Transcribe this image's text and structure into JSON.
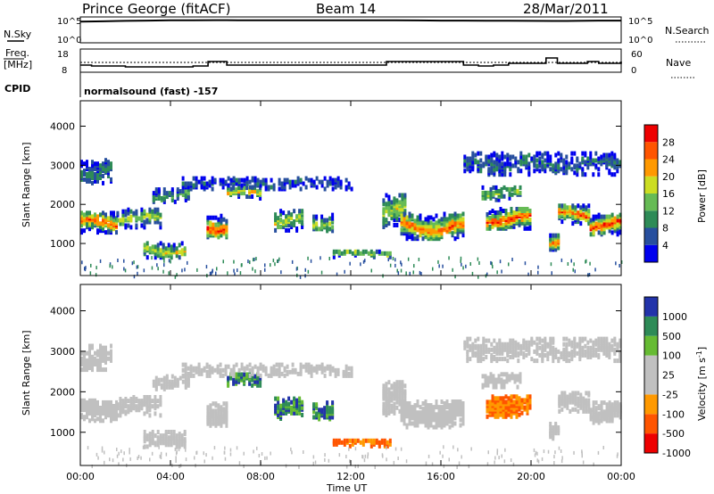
{
  "header": {
    "station": "Prince George (fitACF)",
    "beam": "Beam 14",
    "date": "28/Mar/2011"
  },
  "params": {
    "nsky_label": "N.Sky",
    "nsearch_label": "N.Search",
    "freq_label_1": "Freq.",
    "freq_label_2": "[MHz]",
    "nave_label": "Nave",
    "cpid_label": "CPID",
    "cpid_text": "normalsound (fast) -157",
    "nsky_ticks": [
      "10^5",
      "10^0"
    ],
    "freq_ticks": [
      "18",
      "8"
    ],
    "nave_ticks": [
      "60",
      "0"
    ]
  },
  "colors": {
    "power": [
      "#0000ee",
      "#274f9e",
      "#2e8b57",
      "#66bb55",
      "#ccdd22",
      "#ff9900",
      "#ff5500",
      "#ee0000"
    ],
    "velocity": [
      "#2233aa",
      "#2e8b57",
      "#66bb33",
      "#c0c0c0",
      "#c0c0c0",
      "#ff9900",
      "#ff5500",
      "#ee0000"
    ]
  },
  "chart_data": [
    {
      "type": "line",
      "title": "N.Sky / N.Search",
      "x": [
        "00:00",
        "01:00",
        "02:00",
        "03:00",
        "04:00",
        "05:00",
        "06:00",
        "07:00",
        "08:00",
        "09:00",
        "10:00",
        "11:00",
        "12:00",
        "13:00",
        "14:00",
        "15:00",
        "16:00",
        "17:00",
        "18:00",
        "19:00",
        "20:00",
        "21:00",
        "22:00",
        "23:00",
        "24:00"
      ],
      "series": [
        {
          "name": "N.Sky",
          "values": [
            35000,
            40000,
            52000,
            60000,
            68000,
            72000,
            74000,
            72000,
            70000,
            68000,
            70000,
            72000,
            72000,
            70000,
            68000,
            64000,
            60000,
            58000,
            55000,
            55000,
            50000,
            48000,
            52000,
            58000,
            60000
          ]
        }
      ],
      "yscale": "log",
      "ylim": [
        1,
        100000
      ]
    },
    {
      "type": "line",
      "title": "Freq. / Nave",
      "series": [
        {
          "name": "Freq. [MHz]",
          "x": [
            "00:00",
            "00:30",
            "02:00",
            "05:00",
            "05:40",
            "06:30",
            "13:20",
            "13:35",
            "17:00",
            "17:40",
            "18:20",
            "19:00",
            "20:40",
            "21:10",
            "22:30",
            "23:00",
            "24:00"
          ],
          "values": [
            11,
            10.5,
            10,
            10.5,
            13,
            11,
            11,
            13,
            11,
            10.5,
            11,
            12,
            15,
            12,
            13,
            12,
            13
          ]
        }
      ],
      "secondary_ylim": [
        0,
        60
      ],
      "ylim": [
        8,
        18
      ]
    },
    {
      "type": "heatmap",
      "title": "Power",
      "xlabel": "",
      "ylabel": "Slant Range [km]",
      "x_ticks": [
        "00:00",
        "04:00",
        "08:00",
        "12:00",
        "16:00",
        "20:00",
        "00:00"
      ],
      "xlim": [
        0,
        24
      ],
      "y_ticks": [
        1000,
        2000,
        3000,
        4000
      ],
      "ylim": [
        180,
        4650
      ],
      "colorbar_label": "Power [dB]",
      "colorbar_ticks": [
        4,
        8,
        12,
        16,
        20,
        24,
        28
      ],
      "colorbar_range": [
        0,
        30
      ]
    },
    {
      "type": "heatmap",
      "title": "Velocity",
      "xlabel": "Time UT",
      "ylabel": "Slant Range [km]",
      "x_ticks": [
        "00:00",
        "04:00",
        "08:00",
        "12:00",
        "16:00",
        "20:00",
        "00:00"
      ],
      "xlim": [
        0,
        24
      ],
      "y_ticks": [
        1000,
        2000,
        3000,
        4000
      ],
      "ylim": [
        180,
        4650
      ],
      "colorbar_label": "Velocity [m s-1]",
      "colorbar_ticks": [
        "1000",
        "500",
        "100",
        "25",
        "-25",
        "-100",
        "-500",
        "-1000"
      ]
    }
  ],
  "axes": {
    "x_ticks": [
      "00:00",
      "04:00",
      "08:00",
      "12:00",
      "16:00",
      "20:00",
      "00:00"
    ],
    "xlabel": "Time UT",
    "ylabel": "Slant Range [km]",
    "y_ticks": [
      "1000",
      "2000",
      "3000",
      "4000"
    ],
    "power_label": "Power [dB]",
    "power_ticks": [
      "28",
      "24",
      "20",
      "16",
      "12",
      "8",
      "4"
    ],
    "vel_label": "Velocity [m s",
    "vel_label_sup": "-1",
    "vel_label_end": "]",
    "vel_ticks": [
      "1000",
      "500",
      "100",
      "25",
      "-25",
      "-100",
      "-500",
      "-1000"
    ]
  }
}
